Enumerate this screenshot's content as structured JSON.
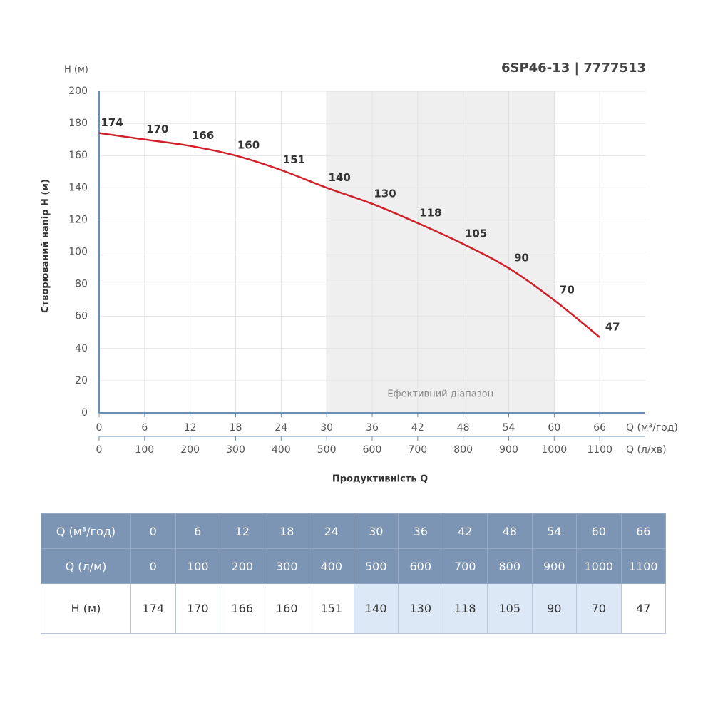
{
  "chart_data": {
    "type": "line",
    "title": "6SP46-13 | 7777513",
    "y_unit_label": "H (м)",
    "ylabel": "Створюваний напір H (м)",
    "xlabel": "Продуктивність Q",
    "x_unit_label": "Q (м³/год)",
    "x2_unit_label": "Q (л/хв)",
    "x": [
      0,
      6,
      12,
      18,
      24,
      30,
      36,
      42,
      48,
      54,
      60,
      66
    ],
    "values": [
      174,
      170,
      166,
      160,
      151,
      140,
      130,
      118,
      105,
      90,
      70,
      47
    ],
    "color": "#d0202a",
    "xlim": [
      0,
      72
    ],
    "xticks": [
      0,
      6,
      12,
      18,
      24,
      30,
      36,
      42,
      48,
      54,
      60,
      66
    ],
    "x2lim": [
      0,
      1200
    ],
    "x2ticks": [
      0,
      100,
      200,
      300,
      400,
      500,
      600,
      700,
      800,
      900,
      1000,
      1100
    ],
    "ylim": [
      0,
      200
    ],
    "yticks": [
      0,
      20,
      40,
      60,
      80,
      100,
      120,
      140,
      160,
      180,
      200
    ],
    "grid": true,
    "effective_range": [
      30,
      60
    ],
    "effective_label": "Ефективний діапазон"
  },
  "table": {
    "rows": [
      [
        "Q (м³/год)",
        0,
        6,
        12,
        18,
        24,
        30,
        36,
        42,
        48,
        54,
        60,
        66
      ],
      [
        "Q (л/м)",
        0,
        100,
        200,
        300,
        400,
        500,
        600,
        700,
        800,
        900,
        1000,
        1100
      ],
      [
        "H (м)",
        174,
        170,
        166,
        160,
        151,
        140,
        130,
        118,
        105,
        90,
        70,
        47
      ]
    ]
  }
}
